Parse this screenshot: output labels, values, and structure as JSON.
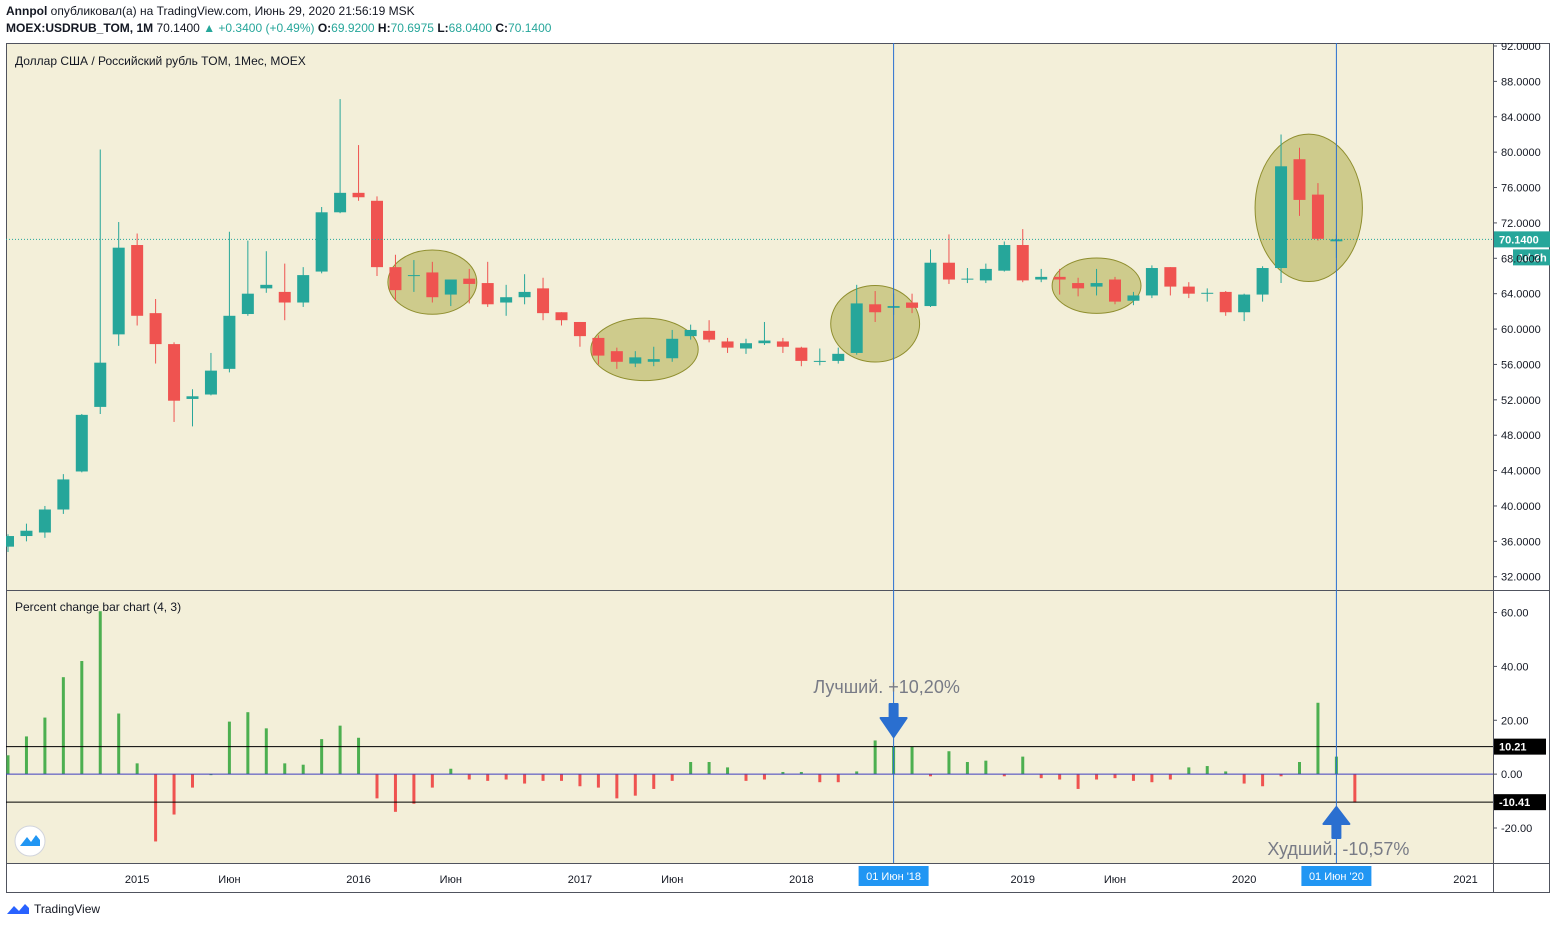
{
  "header": {
    "author": "Annpol",
    "published_text": "опубликовал(а) на TradingView.com, Июнь 29, 2020 21:56:19 MSK",
    "symbol": "MOEX:USDRUB_TOM, 1M",
    "last": "70.1400",
    "change": "▲ +0.3400 (+0.49%)",
    "o_label": "O:",
    "o": "69.9200",
    "h_label": "H:",
    "h": "70.6975",
    "l_label": "L:",
    "l": "68.0400",
    "c_label": "C:",
    "c": "70.1400"
  },
  "colors": {
    "up": "#26a69a",
    "down": "#ef5350",
    "bg": "#f3efd9",
    "hist_up": "#4caf50",
    "hist_down": "#ef5350",
    "marker": "#2a6fd0",
    "ellipse_fill": "#b6b55c",
    "ellipse_stroke": "#8f8e2e",
    "price_line": "#26a69a",
    "zero_line": "#3f3fbf"
  },
  "chart_data": [
    {
      "type": "candlestick",
      "title": "Доллар США / Российский рубль TOM, 1Мес, MOEX",
      "y_ticks": [
        "92.0000",
        "88.0000",
        "84.0000",
        "80.0000",
        "76.0000",
        "72.0000",
        "68.0000",
        "64.0000",
        "60.0000",
        "56.0000",
        "52.0000",
        "48.0000",
        "44.0000",
        "40.0000",
        "36.0000",
        "32.0000"
      ],
      "ylim": [
        30.5,
        92.0
      ],
      "x_ticks": [
        {
          "label": "2015",
          "date": "2015-01"
        },
        {
          "label": "Июн",
          "date": "2015-06"
        },
        {
          "label": "2016",
          "date": "2016-01"
        },
        {
          "label": "Июн",
          "date": "2016-06"
        },
        {
          "label": "2017",
          "date": "2017-01"
        },
        {
          "label": "Июн",
          "date": "2017-06"
        },
        {
          "label": "2018",
          "date": "2018-01"
        },
        {
          "label": "2019",
          "date": "2019-01"
        },
        {
          "label": "Июн",
          "date": "2019-06"
        },
        {
          "label": "2020",
          "date": "2020-01"
        },
        {
          "label": "2021",
          "date": "2021-01"
        }
      ],
      "last_price_label": "70.1400",
      "countdown_label": "1d 2h",
      "candles": [
        {
          "t": "2014-06",
          "o": 35.4,
          "h": 36.8,
          "l": 34.8,
          "c": 36.6
        },
        {
          "t": "2014-07",
          "o": 36.6,
          "h": 38.0,
          "l": 36.0,
          "c": 37.2
        },
        {
          "t": "2014-08",
          "o": 37.0,
          "h": 40.0,
          "l": 36.4,
          "c": 39.6
        },
        {
          "t": "2014-09",
          "o": 39.6,
          "h": 43.6,
          "l": 39.1,
          "c": 43.0
        },
        {
          "t": "2014-10",
          "o": 43.9,
          "h": 50.4,
          "l": 43.8,
          "c": 50.3
        },
        {
          "t": "2014-11",
          "o": 51.2,
          "h": 80.3,
          "l": 50.4,
          "c": 56.2
        },
        {
          "t": "2014-12",
          "o": 59.4,
          "h": 72.1,
          "l": 58.1,
          "c": 69.2
        },
        {
          "t": "2015-01",
          "o": 69.5,
          "h": 70.8,
          "l": 60.4,
          "c": 61.5
        },
        {
          "t": "2015-02",
          "o": 61.8,
          "h": 63.4,
          "l": 56.1,
          "c": 58.3
        },
        {
          "t": "2015-03",
          "o": 58.3,
          "h": 58.5,
          "l": 49.5,
          "c": 51.9
        },
        {
          "t": "2015-04",
          "o": 52.1,
          "h": 53.2,
          "l": 49.0,
          "c": 52.4
        },
        {
          "t": "2015-05",
          "o": 52.6,
          "h": 57.3,
          "l": 52.5,
          "c": 55.3
        },
        {
          "t": "2015-06",
          "o": 55.5,
          "h": 71.0,
          "l": 55.1,
          "c": 61.5
        },
        {
          "t": "2015-07",
          "o": 61.7,
          "h": 70.0,
          "l": 61.5,
          "c": 64.0
        },
        {
          "t": "2015-08",
          "o": 64.6,
          "h": 68.8,
          "l": 64.1,
          "c": 65.0
        },
        {
          "t": "2015-09",
          "o": 64.2,
          "h": 67.4,
          "l": 61.0,
          "c": 63.0
        },
        {
          "t": "2015-10",
          "o": 63.0,
          "h": 67.0,
          "l": 62.5,
          "c": 66.1
        },
        {
          "t": "2015-11",
          "o": 66.5,
          "h": 73.8,
          "l": 66.3,
          "c": 73.2
        },
        {
          "t": "2015-12",
          "o": 73.2,
          "h": 86.0,
          "l": 73.1,
          "c": 75.4
        },
        {
          "t": "2016-01",
          "o": 75.4,
          "h": 80.8,
          "l": 74.5,
          "c": 74.9
        },
        {
          "t": "2016-02",
          "o": 74.5,
          "h": 75.0,
          "l": 66.0,
          "c": 67.0
        },
        {
          "t": "2016-03",
          "o": 67.0,
          "h": 68.4,
          "l": 63.2,
          "c": 64.4
        },
        {
          "t": "2016-04",
          "o": 66.0,
          "h": 67.8,
          "l": 64.2,
          "c": 66.1
        },
        {
          "t": "2016-05",
          "o": 66.4,
          "h": 67.6,
          "l": 63.0,
          "c": 63.6
        },
        {
          "t": "2016-06",
          "o": 63.9,
          "h": 65.4,
          "l": 62.6,
          "c": 65.6
        },
        {
          "t": "2016-07",
          "o": 65.7,
          "h": 66.8,
          "l": 62.9,
          "c": 65.1
        },
        {
          "t": "2016-08",
          "o": 65.2,
          "h": 67.6,
          "l": 62.5,
          "c": 62.8
        },
        {
          "t": "2016-09",
          "o": 63.0,
          "h": 65.0,
          "l": 61.5,
          "c": 63.6
        },
        {
          "t": "2016-10",
          "o": 63.6,
          "h": 66.2,
          "l": 62.8,
          "c": 64.2
        },
        {
          "t": "2016-11",
          "o": 64.6,
          "h": 65.8,
          "l": 61.0,
          "c": 61.8
        },
        {
          "t": "2016-12",
          "o": 61.9,
          "h": 61.9,
          "l": 60.4,
          "c": 61.0
        },
        {
          "t": "2017-01",
          "o": 60.8,
          "h": 60.8,
          "l": 58.0,
          "c": 59.2
        },
        {
          "t": "2017-02",
          "o": 59.0,
          "h": 59.3,
          "l": 56.0,
          "c": 57.0
        },
        {
          "t": "2017-03",
          "o": 57.5,
          "h": 57.9,
          "l": 55.5,
          "c": 56.3
        },
        {
          "t": "2017-04",
          "o": 56.1,
          "h": 57.5,
          "l": 55.7,
          "c": 56.8
        },
        {
          "t": "2017-05",
          "o": 56.3,
          "h": 58.0,
          "l": 55.8,
          "c": 56.6
        },
        {
          "t": "2017-06",
          "o": 56.7,
          "h": 59.9,
          "l": 56.3,
          "c": 58.9
        },
        {
          "t": "2017-07",
          "o": 59.2,
          "h": 60.5,
          "l": 58.8,
          "c": 59.9
        },
        {
          "t": "2017-08",
          "o": 59.8,
          "h": 61.0,
          "l": 58.5,
          "c": 58.8
        },
        {
          "t": "2017-09",
          "o": 58.6,
          "h": 59.0,
          "l": 57.3,
          "c": 57.9
        },
        {
          "t": "2017-10",
          "o": 57.8,
          "h": 58.9,
          "l": 57.2,
          "c": 58.4
        },
        {
          "t": "2017-11",
          "o": 58.4,
          "h": 60.8,
          "l": 58.2,
          "c": 58.7
        },
        {
          "t": "2017-12",
          "o": 58.6,
          "h": 59.0,
          "l": 57.3,
          "c": 58.0
        },
        {
          "t": "2018-01",
          "o": 57.9,
          "h": 58.0,
          "l": 55.8,
          "c": 56.4
        },
        {
          "t": "2018-02",
          "o": 56.3,
          "h": 57.8,
          "l": 55.9,
          "c": 56.4
        },
        {
          "t": "2018-03",
          "o": 56.4,
          "h": 57.9,
          "l": 56.1,
          "c": 57.2
        },
        {
          "t": "2018-04",
          "o": 57.3,
          "h": 65.0,
          "l": 57.1,
          "c": 62.9
        },
        {
          "t": "2018-05",
          "o": 62.8,
          "h": 64.3,
          "l": 60.8,
          "c": 61.9
        },
        {
          "t": "2018-06",
          "o": 62.4,
          "h": 64.0,
          "l": 61.6,
          "c": 62.6
        },
        {
          "t": "2018-07",
          "o": 63.0,
          "h": 64.0,
          "l": 61.8,
          "c": 62.4
        },
        {
          "t": "2018-08",
          "o": 62.6,
          "h": 69.0,
          "l": 62.5,
          "c": 67.5
        },
        {
          "t": "2018-09",
          "o": 67.5,
          "h": 70.7,
          "l": 65.1,
          "c": 65.6
        },
        {
          "t": "2018-10",
          "o": 65.6,
          "h": 66.9,
          "l": 65.2,
          "c": 65.7
        },
        {
          "t": "2018-11",
          "o": 65.5,
          "h": 67.4,
          "l": 65.2,
          "c": 66.8
        },
        {
          "t": "2018-12",
          "o": 66.6,
          "h": 69.9,
          "l": 66.5,
          "c": 69.5
        },
        {
          "t": "2019-01",
          "o": 69.5,
          "h": 71.3,
          "l": 65.3,
          "c": 65.5
        },
        {
          "t": "2019-02",
          "o": 65.6,
          "h": 66.8,
          "l": 65.3,
          "c": 65.9
        },
        {
          "t": "2019-03",
          "o": 65.9,
          "h": 66.8,
          "l": 63.9,
          "c": 65.6
        },
        {
          "t": "2019-04",
          "o": 65.2,
          "h": 65.8,
          "l": 63.7,
          "c": 64.6
        },
        {
          "t": "2019-05",
          "o": 64.8,
          "h": 66.8,
          "l": 63.8,
          "c": 65.2
        },
        {
          "t": "2019-06",
          "o": 65.6,
          "h": 65.9,
          "l": 62.8,
          "c": 63.1
        },
        {
          "t": "2019-07",
          "o": 63.2,
          "h": 64.2,
          "l": 62.7,
          "c": 63.8
        },
        {
          "t": "2019-08",
          "o": 63.8,
          "h": 67.2,
          "l": 63.5,
          "c": 66.9
        },
        {
          "t": "2019-09",
          "o": 67.0,
          "h": 67.0,
          "l": 63.8,
          "c": 64.8
        },
        {
          "t": "2019-10",
          "o": 64.8,
          "h": 65.3,
          "l": 63.5,
          "c": 64.0
        },
        {
          "t": "2019-11",
          "o": 64.0,
          "h": 64.6,
          "l": 63.1,
          "c": 64.1
        },
        {
          "t": "2019-12",
          "o": 64.2,
          "h": 64.3,
          "l": 61.5,
          "c": 61.9
        },
        {
          "t": "2020-01",
          "o": 61.9,
          "h": 64.0,
          "l": 60.9,
          "c": 63.9
        },
        {
          "t": "2020-02",
          "o": 63.9,
          "h": 67.1,
          "l": 63.1,
          "c": 66.9
        },
        {
          "t": "2020-03",
          "o": 66.9,
          "h": 82.0,
          "l": 65.2,
          "c": 78.4
        },
        {
          "t": "2020-04",
          "o": 79.2,
          "h": 80.5,
          "l": 72.8,
          "c": 74.6
        },
        {
          "t": "2020-05",
          "o": 75.2,
          "h": 76.5,
          "l": 70.0,
          "c": 70.2
        },
        {
          "t": "2020-06",
          "o": 69.92,
          "h": 70.6975,
          "l": 68.04,
          "c": 70.14
        }
      ]
    },
    {
      "type": "bar",
      "title": "Percent change bar chart (4, 3)",
      "y_ticks": [
        "60.00",
        "40.00",
        "20.00",
        "0.00",
        "-20.00"
      ],
      "ylim": [
        -33,
        68
      ],
      "hlines": [
        {
          "value": 10.21,
          "label": "10.21"
        },
        {
          "value": -10.41,
          "label": "-10.41"
        }
      ],
      "best_annotation": "Лучший. +10,20%",
      "worst_annotation": "Худший. -10,57%",
      "cursor_labels": [
        {
          "label": "01 Июн '18",
          "date": "2018-06"
        },
        {
          "label": "01 Июн '20",
          "date": "2020-06"
        }
      ],
      "values": [
        {
          "t": "2014-06",
          "v": 7
        },
        {
          "t": "2014-07",
          "v": 14
        },
        {
          "t": "2014-08",
          "v": 21
        },
        {
          "t": "2014-09",
          "v": 36
        },
        {
          "t": "2014-10",
          "v": 42
        },
        {
          "t": "2014-11",
          "v": 60.5
        },
        {
          "t": "2014-12",
          "v": 22.5
        },
        {
          "t": "2015-01",
          "v": 4
        },
        {
          "t": "2015-02",
          "v": -25
        },
        {
          "t": "2015-03",
          "v": -15
        },
        {
          "t": "2015-04",
          "v": -5
        },
        {
          "t": "2015-05",
          "v": 0
        },
        {
          "t": "2015-06",
          "v": 19.5
        },
        {
          "t": "2015-07",
          "v": 23
        },
        {
          "t": "2015-08",
          "v": 17
        },
        {
          "t": "2015-09",
          "v": 4
        },
        {
          "t": "2015-10",
          "v": 3.5
        },
        {
          "t": "2015-11",
          "v": 13
        },
        {
          "t": "2015-12",
          "v": 18
        },
        {
          "t": "2016-01",
          "v": 13.5
        },
        {
          "t": "2016-02",
          "v": -9
        },
        {
          "t": "2016-03",
          "v": -14
        },
        {
          "t": "2016-04",
          "v": -11
        },
        {
          "t": "2016-05",
          "v": -5
        },
        {
          "t": "2016-06",
          "v": 2
        },
        {
          "t": "2016-07",
          "v": -2
        },
        {
          "t": "2016-08",
          "v": -2.5
        },
        {
          "t": "2016-09",
          "v": -2
        },
        {
          "t": "2016-10",
          "v": -3.5
        },
        {
          "t": "2016-11",
          "v": -2.5
        },
        {
          "t": "2016-12",
          "v": -2.5
        },
        {
          "t": "2017-01",
          "v": -4.5
        },
        {
          "t": "2017-02",
          "v": -5
        },
        {
          "t": "2017-03",
          "v": -9
        },
        {
          "t": "2017-04",
          "v": -8
        },
        {
          "t": "2017-05",
          "v": -5.5
        },
        {
          "t": "2017-06",
          "v": -2.5
        },
        {
          "t": "2017-07",
          "v": 4.5
        },
        {
          "t": "2017-08",
          "v": 4.5
        },
        {
          "t": "2017-09",
          "v": 2.5
        },
        {
          "t": "2017-10",
          "v": -2.5
        },
        {
          "t": "2017-11",
          "v": -2
        },
        {
          "t": "2017-12",
          "v": 0.8
        },
        {
          "t": "2018-01",
          "v": 0.8
        },
        {
          "t": "2018-02",
          "v": -3
        },
        {
          "t": "2018-03",
          "v": -3
        },
        {
          "t": "2018-04",
          "v": 1
        },
        {
          "t": "2018-05",
          "v": 12.5
        },
        {
          "t": "2018-06",
          "v": 10.2
        },
        {
          "t": "2018-07",
          "v": 10.2
        },
        {
          "t": "2018-08",
          "v": -0.8
        },
        {
          "t": "2018-09",
          "v": 8.5
        },
        {
          "t": "2018-10",
          "v": 4.5
        },
        {
          "t": "2018-11",
          "v": 5
        },
        {
          "t": "2018-12",
          "v": -0.8
        },
        {
          "t": "2019-01",
          "v": 6.5
        },
        {
          "t": "2019-02",
          "v": -1.5
        },
        {
          "t": "2019-03",
          "v": -2
        },
        {
          "t": "2019-04",
          "v": -5.5
        },
        {
          "t": "2019-05",
          "v": -2
        },
        {
          "t": "2019-06",
          "v": -1.5
        },
        {
          "t": "2019-07",
          "v": -2.5
        },
        {
          "t": "2019-08",
          "v": -3
        },
        {
          "t": "2019-09",
          "v": -2
        },
        {
          "t": "2019-10",
          "v": 2.5
        },
        {
          "t": "2019-11",
          "v": 3
        },
        {
          "t": "2019-12",
          "v": 1
        },
        {
          "t": "2020-01",
          "v": -3.5
        },
        {
          "t": "2020-02",
          "v": -4.5
        },
        {
          "t": "2020-03",
          "v": -0.8
        },
        {
          "t": "2020-04",
          "v": 4.5
        },
        {
          "t": "2020-05",
          "v": 26.5
        },
        {
          "t": "2020-06",
          "v": 6.5
        },
        {
          "t": "2020-07",
          "v": -10.57
        }
      ]
    }
  ],
  "footer": {
    "brand": "TradingView",
    "logo": "tradingview-logo-icon",
    "badge_icon": "tradingview-badge-icon"
  }
}
